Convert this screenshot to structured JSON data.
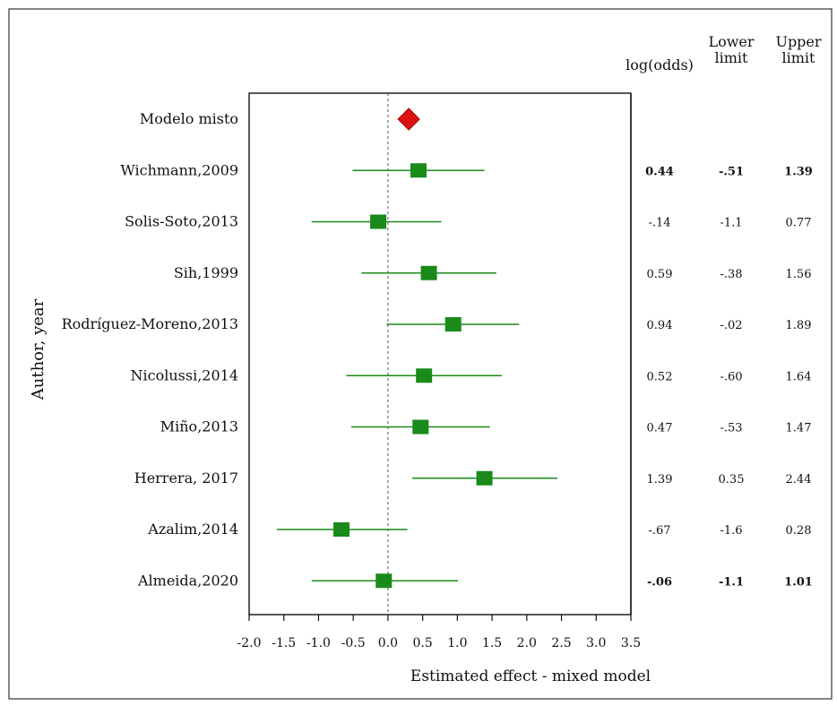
{
  "chart_data": {
    "type": "forest",
    "ylabel": "Author, year",
    "xlabel": "Estimated effect - mixed model",
    "xlim": [
      -2.0,
      3.5
    ],
    "x_ticks": [
      "-2.0",
      "-1.5",
      "-1.0",
      "-0.5",
      "0.0",
      "0.5",
      "1.0",
      "1.5",
      "2.0",
      "2.5",
      "3.0",
      "3.5"
    ],
    "reference_line": 0.0,
    "columns": {
      "estimate": "log(odds)",
      "lower_line1": "Lower",
      "lower_line2": "limit",
      "upper_line1": "Upper",
      "upper_line2": "limit"
    },
    "summary": {
      "label": "Modelo misto",
      "estimate": 0.3,
      "color": "#dd1111"
    },
    "point_color": "#1a8a1a",
    "studies": [
      {
        "label": "Wichmann,2009",
        "estimate": 0.44,
        "lower": -0.51,
        "upper": 1.39,
        "est_text": "0.44",
        "lower_text": "-.51",
        "upper_text": "1.39",
        "bold": true
      },
      {
        "label": "Solis-Soto,2013",
        "estimate": -0.14,
        "lower": -1.1,
        "upper": 0.77,
        "est_text": "-.14",
        "lower_text": "-1.1",
        "upper_text": "0.77",
        "bold": false
      },
      {
        "label": "Sih,1999",
        "estimate": 0.59,
        "lower": -0.38,
        "upper": 1.56,
        "est_text": "0.59",
        "lower_text": "-.38",
        "upper_text": "1.56",
        "bold": false
      },
      {
        "label": "Rodríguez-Moreno,2013",
        "estimate": 0.94,
        "lower": -0.02,
        "upper": 1.89,
        "est_text": "0.94",
        "lower_text": "-.02",
        "upper_text": "1.89",
        "bold": false
      },
      {
        "label": "Nicolussi,2014",
        "estimate": 0.52,
        "lower": -0.6,
        "upper": 1.64,
        "est_text": "0.52",
        "lower_text": "-.60",
        "upper_text": "1.64",
        "bold": false
      },
      {
        "label": "Miño,2013",
        "estimate": 0.47,
        "lower": -0.53,
        "upper": 1.47,
        "est_text": "0.47",
        "lower_text": "-.53",
        "upper_text": "1.47",
        "bold": false
      },
      {
        "label": "Herrera, 2017",
        "estimate": 1.39,
        "lower": 0.35,
        "upper": 2.44,
        "est_text": "1.39",
        "lower_text": "0.35",
        "upper_text": "2.44",
        "bold": false
      },
      {
        "label": "Azalim,2014",
        "estimate": -0.67,
        "lower": -1.6,
        "upper": 0.28,
        "est_text": "-.67",
        "lower_text": "-1.6",
        "upper_text": "0.28",
        "bold": false
      },
      {
        "label": "Almeida,2020",
        "estimate": -0.06,
        "lower": -1.1,
        "upper": 1.01,
        "est_text": "-.06",
        "lower_text": "-1.1",
        "upper_text": "1.01",
        "bold": true
      }
    ]
  }
}
